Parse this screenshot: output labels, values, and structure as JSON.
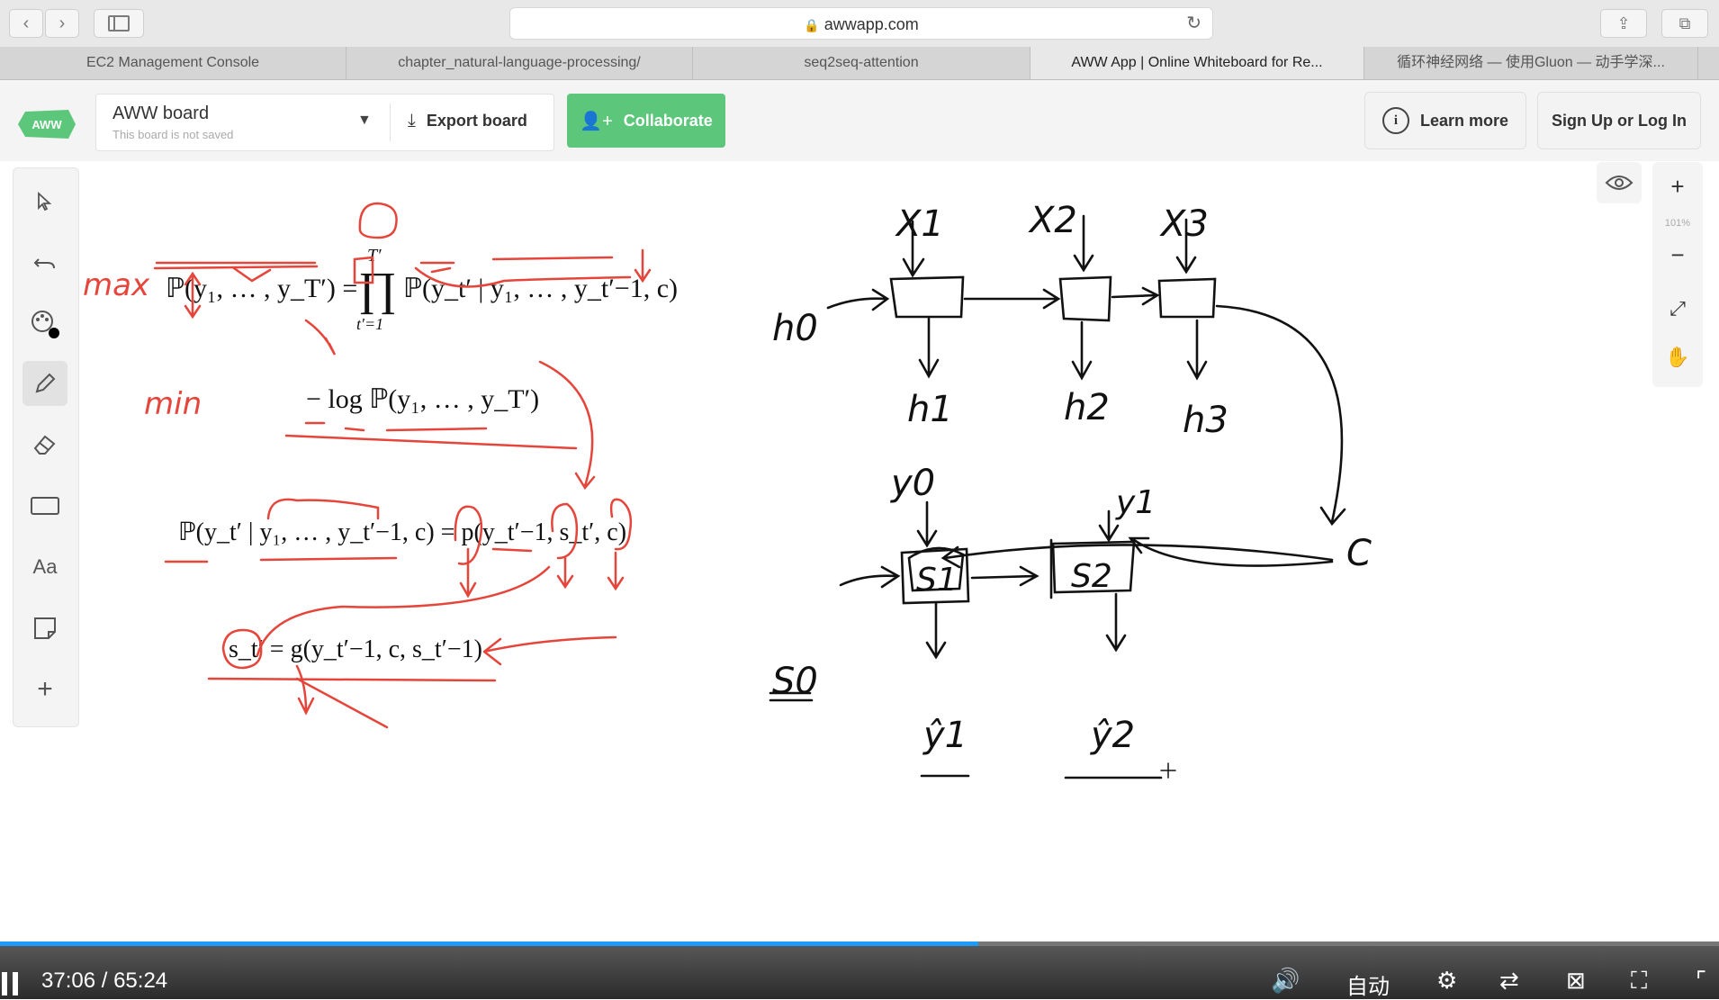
{
  "browser": {
    "url": "awwapp.com",
    "tabs": [
      {
        "label": "EC2 Management Console"
      },
      {
        "label": "chapter_natural-language-processing/"
      },
      {
        "label": "seq2seq-attention"
      },
      {
        "label": "AWW App | Online Whiteboard for Re..."
      },
      {
        "label": "循环神经网络 — 使用Gluon — 动手学深..."
      }
    ],
    "active_tab_index": 3
  },
  "app": {
    "logo_text": "AWW",
    "board_title": "AWW board",
    "board_subtitle": "This board is not saved",
    "export_label": "Export board",
    "collaborate_label": "Collaborate",
    "learn_more_label": "Learn more",
    "signup_label": "Sign Up or Log In",
    "zoom_level": "101%",
    "accent_color": "#5cc77a"
  },
  "tools": [
    "select-tool",
    "undo-tool",
    "color-picker-tool",
    "pencil-tool",
    "eraser-tool",
    "rectangle-tool",
    "text-tool",
    "sticky-note-tool",
    "add-tool"
  ],
  "tool_text_label": "Aa",
  "whiteboard": {
    "eq1_left": "ℙ(y₁, … , y_T′) =",
    "eq1_prod": "∏",
    "eq1_upper": "T′",
    "eq1_lower": "t′=1",
    "eq1_right": "ℙ(y_t′ | y₁, … , y_t′−1, c)",
    "eq2": "− log ℙ(y₁, … , y_T′)",
    "eq3": "ℙ(y_t′ | y₁, … , y_t′−1, c) = p(y_t′−1, s_t′, c)",
    "eq4": "s_t′ = g(y_t′−1, c, s_t′−1)",
    "hand_max": "max",
    "hand_min": "min",
    "encoder_inputs": [
      "X1",
      "X2",
      "X3"
    ],
    "h0": "h0",
    "hidden_states": [
      "h1",
      "h2",
      "h3"
    ],
    "context": "C",
    "y0": "y0",
    "y1": "y1",
    "s0": "S0",
    "decoder_states": [
      "S1",
      "S2"
    ],
    "outputs": [
      "ŷ1",
      "ŷ2"
    ]
  },
  "video": {
    "current_time": "37:06",
    "separator": "/",
    "duration": "65:24",
    "progress": 0.569,
    "quality_label": "自动"
  }
}
